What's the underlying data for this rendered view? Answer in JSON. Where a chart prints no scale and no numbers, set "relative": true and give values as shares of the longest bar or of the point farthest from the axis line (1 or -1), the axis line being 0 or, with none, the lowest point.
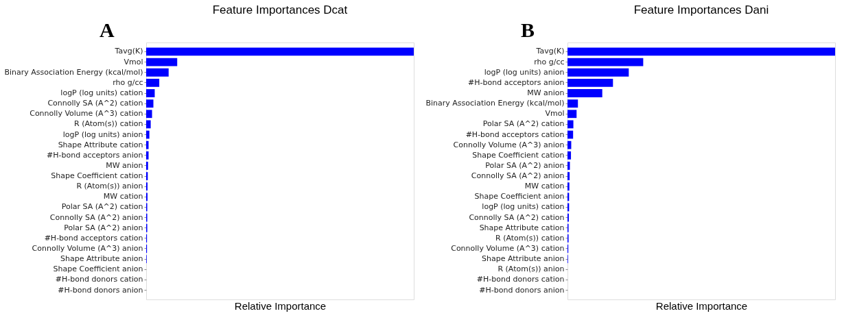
{
  "chart_data": [
    {
      "type": "bar",
      "orientation": "horizontal",
      "relative": true,
      "title": "Feature Importances Dcat",
      "xlabel": "Relative Importance",
      "annotations": [
        "A"
      ],
      "grid": false,
      "legend": false,
      "categories": [
        "Tavg(K)",
        "Vmol",
        "Binary Association Energy (kcal/mol)",
        "rho g/cc",
        "logP (log units) cation",
        "Connolly SA (A^2) cation",
        "Connolly Volume (A^3) cation",
        "R (Atom(s)) cation",
        "logP (log units) anion",
        "Shape Attribute cation",
        "#H-bond acceptors anion",
        "MW anion",
        "Shape Coefficient cation",
        "R (Atom(s)) anion",
        "MW cation",
        "Polar SA (A^2) cation",
        "Connolly SA (A^2) anion",
        "Polar SA (A^2) anion",
        "#H-bond acceptors cation",
        "Connolly Volume (A^3) anion",
        "Shape Attribute anion",
        "Shape Coefficient anion",
        "#H-bond donors cation",
        "#H-bond donors anion"
      ],
      "series": [
        {
          "color": "#0000ff",
          "values": [
            1,
            0.116,
            0.084,
            0.049,
            0.032,
            0.027,
            0.022,
            0.017,
            0.012,
            0.009,
            0.009,
            0.007,
            0.006,
            0.005,
            0.005,
            0.004,
            0.004,
            0.004,
            0.003,
            0.003,
            0.002,
            0,
            0,
            0
          ]
        }
      ]
    },
    {
      "type": "bar",
      "orientation": "horizontal",
      "relative": true,
      "title": "Feature Importances Dani",
      "xlabel": "Relative Importance",
      "annotations": [
        "B"
      ],
      "grid": false,
      "legend": false,
      "categories": [
        "Tavg(K)",
        "rho g/cc",
        "logP (log units) anion",
        "#H-bond acceptors anion",
        "MW anion",
        "Binary Association Energy (kcal/mol)",
        "Vmol",
        "Polar SA (A^2) cation",
        "#H-bond acceptors cation",
        "Connolly Volume (A^3) anion",
        "Shape Coefficient cation",
        "Polar SA (A^2) anion",
        "Connolly SA (A^2) anion",
        "MW cation",
        "Shape Coefficient anion",
        "logP (log units) cation",
        "Connolly SA (A^2) cation",
        "Shape Attribute cation",
        "R (Atom(s)) cation",
        "Connolly Volume (A^3) cation",
        "Shape Attribute anion",
        "R (Atom(s)) anion",
        "#H-bond donors cation",
        "#H-bond donors anion"
      ],
      "series": [
        {
          "color": "#0000ff",
          "values": [
            1,
            0.283,
            0.229,
            0.17,
            0.13,
            0.039,
            0.034,
            0.022,
            0.021,
            0.014,
            0.013,
            0.009,
            0.008,
            0.007,
            0.006,
            0.006,
            0.005,
            0.004,
            0.004,
            0.003,
            0.002,
            0,
            0,
            0
          ]
        }
      ]
    }
  ]
}
